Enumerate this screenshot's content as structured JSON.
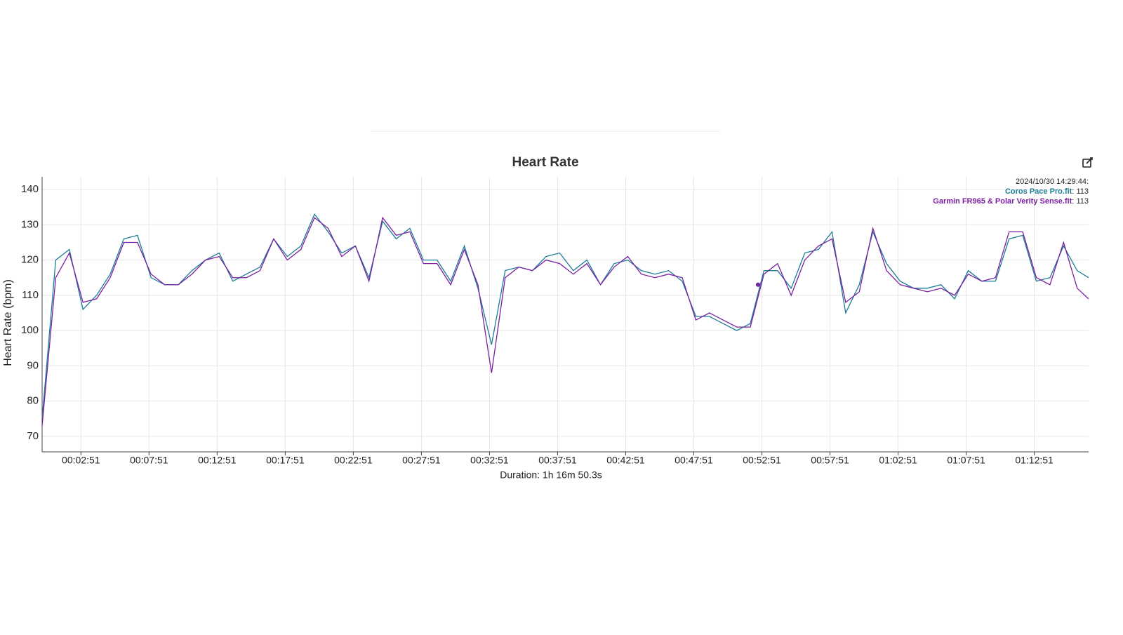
{
  "chart_data": {
    "type": "line",
    "title": "Heart Rate",
    "xlabel": "Duration: 1h 16m 50.3s",
    "ylabel": "Heart Rate (bpm)",
    "x": [
      0,
      60,
      120,
      180,
      240,
      300,
      360,
      420,
      480,
      540,
      600,
      660,
      720,
      780,
      840,
      900,
      960,
      1020,
      1080,
      1140,
      1200,
      1260,
      1320,
      1380,
      1440,
      1500,
      1560,
      1620,
      1680,
      1740,
      1800,
      1860,
      1920,
      1980,
      2040,
      2100,
      2160,
      2220,
      2280,
      2340,
      2400,
      2460,
      2520,
      2580,
      2640,
      2700,
      2760,
      2820,
      2880,
      2940,
      3000,
      3060,
      3120,
      3180,
      3240,
      3300,
      3360,
      3420,
      3480,
      3540,
      3600,
      3660,
      3720,
      3780,
      3840,
      3900,
      3960,
      4020,
      4080,
      4140,
      4200,
      4260,
      4320,
      4380,
      4440,
      4500,
      4560,
      4610
    ],
    "series": [
      {
        "name": "Coros Pace Pro.fit",
        "color": "#1b7c96",
        "values": [
          75,
          120,
          123,
          106,
          110,
          116,
          126,
          127,
          115,
          113,
          113,
          117,
          120,
          122,
          114,
          116,
          118,
          126,
          121,
          124,
          133,
          128,
          122,
          124,
          115,
          131,
          126,
          129,
          120,
          120,
          114,
          124,
          112,
          96,
          117,
          118,
          117,
          121,
          122,
          117,
          120,
          113,
          119,
          120,
          117,
          116,
          117,
          114,
          104,
          104,
          102,
          100,
          102,
          117,
          117,
          112,
          122,
          123,
          128,
          105,
          113,
          128,
          119,
          114,
          112,
          112,
          113,
          109,
          117,
          114,
          114,
          126,
          127,
          114,
          115,
          124,
          117,
          115
        ]
      },
      {
        "name": "Garmin FR965 & Polar Verity Sense.fit",
        "color": "#7b1fa2",
        "values": [
          73,
          115,
          122,
          108,
          109,
          115,
          125,
          125,
          116,
          113,
          113,
          116,
          120,
          121,
          115,
          115,
          117,
          126,
          120,
          123,
          132,
          129,
          121,
          124,
          114,
          132,
          127,
          128,
          119,
          119,
          113,
          123,
          113,
          88,
          115,
          118,
          117,
          120,
          119,
          116,
          119,
          113,
          118,
          121,
          116,
          115,
          116,
          115,
          103,
          105,
          103,
          101,
          101,
          116,
          119,
          110,
          120,
          124,
          126,
          108,
          111,
          129,
          117,
          113,
          112,
          111,
          112,
          110,
          116,
          114,
          115,
          128,
          128,
          115,
          113,
          125,
          112,
          109
        ]
      }
    ],
    "tooltip": {
      "title": "2024/10/30 14:29:44:",
      "x": 3154,
      "values": [
        113,
        113
      ],
      "value_labels": [
        ": 113",
        ": 113"
      ]
    },
    "xlim": [
      0,
      4610.3
    ],
    "xticks": [
      {
        "value": 171,
        "label": "00:02:51"
      },
      {
        "value": 471,
        "label": "00:07:51"
      },
      {
        "value": 771,
        "label": "00:12:51"
      },
      {
        "value": 1071,
        "label": "00:17:51"
      },
      {
        "value": 1371,
        "label": "00:22:51"
      },
      {
        "value": 1671,
        "label": "00:27:51"
      },
      {
        "value": 1971,
        "label": "00:32:51"
      },
      {
        "value": 2271,
        "label": "00:37:51"
      },
      {
        "value": 2571,
        "label": "00:42:51"
      },
      {
        "value": 2871,
        "label": "00:47:51"
      },
      {
        "value": 3171,
        "label": "00:52:51"
      },
      {
        "value": 3471,
        "label": "00:57:51"
      },
      {
        "value": 3771,
        "label": "01:02:51"
      },
      {
        "value": 4071,
        "label": "01:07:51"
      },
      {
        "value": 4371,
        "label": "01:12:51"
      }
    ],
    "ylim": [
      65.6,
      143.6
    ],
    "yticks": [
      70,
      80,
      90,
      100,
      110,
      120,
      130,
      140
    ],
    "grid": true
  }
}
